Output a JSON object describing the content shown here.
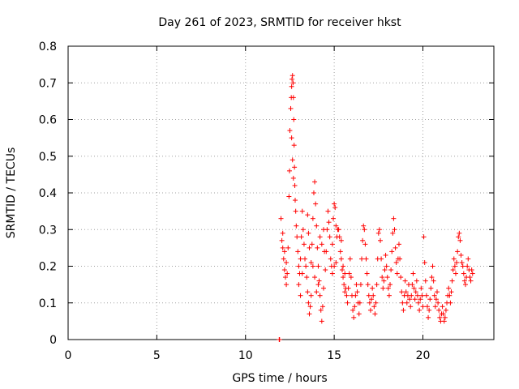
{
  "chart_data": {
    "type": "scatter",
    "title": "Day 261 of 2023, SRMTID for receiver hkst",
    "xlabel": "GPS time / hours",
    "ylabel": "SRMTID / TECUs",
    "xlim": [
      0,
      24
    ],
    "ylim": [
      0,
      0.8
    ],
    "xticks": [
      0,
      5,
      10,
      15,
      20
    ],
    "xtick_labels": [
      "0",
      "5",
      "10",
      "15",
      "20"
    ],
    "yticks": [
      0,
      0.1,
      0.2,
      0.3,
      0.4,
      0.5,
      0.6,
      0.7,
      0.8
    ],
    "ytick_labels": [
      "0",
      "0.1",
      "0.2",
      "0.3",
      "0.4",
      "0.5",
      "0.6",
      "0.7",
      "0.8"
    ],
    "grid": true,
    "marker": "+",
    "color": "#ff0000",
    "series": [
      {
        "name": "hkst",
        "points": [
          [
            11.9,
            0.0
          ],
          [
            11.92,
            0.0
          ],
          [
            12.0,
            0.33
          ],
          [
            12.05,
            0.27
          ],
          [
            12.1,
            0.25
          ],
          [
            12.15,
            0.22
          ],
          [
            12.2,
            0.19
          ],
          [
            12.25,
            0.17
          ],
          [
            12.3,
            0.15
          ],
          [
            12.1,
            0.29
          ],
          [
            12.2,
            0.24
          ],
          [
            12.3,
            0.21
          ],
          [
            12.35,
            0.18
          ],
          [
            12.4,
            0.25
          ],
          [
            12.45,
            0.39
          ],
          [
            12.48,
            0.46
          ],
          [
            12.5,
            0.57
          ],
          [
            12.55,
            0.63
          ],
          [
            12.58,
            0.66
          ],
          [
            12.6,
            0.69
          ],
          [
            12.62,
            0.71
          ],
          [
            12.65,
            0.72
          ],
          [
            12.68,
            0.7
          ],
          [
            12.7,
            0.66
          ],
          [
            12.72,
            0.6
          ],
          [
            12.74,
            0.53
          ],
          [
            12.76,
            0.47
          ],
          [
            12.78,
            0.42
          ],
          [
            12.8,
            0.38
          ],
          [
            12.83,
            0.35
          ],
          [
            12.86,
            0.31
          ],
          [
            12.9,
            0.28
          ],
          [
            12.6,
            0.55
          ],
          [
            12.65,
            0.49
          ],
          [
            12.7,
            0.44
          ],
          [
            12.95,
            0.24
          ],
          [
            13.0,
            0.2
          ],
          [
            13.05,
            0.18
          ],
          [
            13.1,
            0.22
          ],
          [
            13.15,
            0.28
          ],
          [
            13.2,
            0.35
          ],
          [
            13.25,
            0.3
          ],
          [
            13.3,
            0.26
          ],
          [
            13.35,
            0.22
          ],
          [
            13.4,
            0.2
          ],
          [
            13.0,
            0.15
          ],
          [
            13.1,
            0.12
          ],
          [
            13.2,
            0.18
          ],
          [
            13.45,
            0.17
          ],
          [
            13.5,
            0.13
          ],
          [
            13.55,
            0.1
          ],
          [
            13.6,
            0.07
          ],
          [
            13.65,
            0.09
          ],
          [
            13.7,
            0.12
          ],
          [
            13.5,
            0.34
          ],
          [
            13.55,
            0.29
          ],
          [
            13.6,
            0.25
          ],
          [
            13.7,
            0.21
          ],
          [
            13.75,
            0.26
          ],
          [
            13.8,
            0.33
          ],
          [
            13.85,
            0.4
          ],
          [
            13.9,
            0.43
          ],
          [
            13.95,
            0.37
          ],
          [
            14.0,
            0.31
          ],
          [
            14.05,
            0.25
          ],
          [
            13.8,
            0.2
          ],
          [
            13.9,
            0.17
          ],
          [
            14.0,
            0.13
          ],
          [
            14.1,
            0.15
          ],
          [
            14.1,
            0.2
          ],
          [
            14.15,
            0.16
          ],
          [
            14.2,
            0.12
          ],
          [
            14.25,
            0.08
          ],
          [
            14.3,
            0.05
          ],
          [
            14.35,
            0.09
          ],
          [
            14.4,
            0.14
          ],
          [
            14.2,
            0.28
          ],
          [
            14.3,
            0.26
          ],
          [
            14.4,
            0.3
          ],
          [
            14.45,
            0.24
          ],
          [
            14.5,
            0.19
          ],
          [
            14.55,
            0.24
          ],
          [
            14.6,
            0.3
          ],
          [
            14.65,
            0.35
          ],
          [
            14.7,
            0.32
          ],
          [
            14.75,
            0.28
          ],
          [
            14.8,
            0.22
          ],
          [
            14.85,
            0.2
          ],
          [
            14.9,
            0.26
          ],
          [
            14.95,
            0.33
          ],
          [
            15.0,
            0.37
          ],
          [
            15.05,
            0.36
          ],
          [
            15.1,
            0.31
          ],
          [
            15.15,
            0.28
          ],
          [
            15.2,
            0.3
          ],
          [
            14.9,
            0.18
          ],
          [
            15.0,
            0.2
          ],
          [
            15.1,
            0.21
          ],
          [
            15.25,
            0.3
          ],
          [
            15.3,
            0.28
          ],
          [
            15.35,
            0.24
          ],
          [
            15.4,
            0.22
          ],
          [
            15.45,
            0.19
          ],
          [
            15.5,
            0.17
          ],
          [
            15.55,
            0.15
          ],
          [
            15.6,
            0.13
          ],
          [
            15.4,
            0.27
          ],
          [
            15.5,
            0.2
          ],
          [
            15.6,
            0.18
          ],
          [
            15.65,
            0.14
          ],
          [
            15.7,
            0.12
          ],
          [
            15.75,
            0.1
          ],
          [
            15.8,
            0.14
          ],
          [
            15.85,
            0.18
          ],
          [
            15.9,
            0.22
          ],
          [
            15.95,
            0.17
          ],
          [
            16.0,
            0.12
          ],
          [
            16.05,
            0.08
          ],
          [
            16.1,
            0.06
          ],
          [
            16.15,
            0.09
          ],
          [
            16.2,
            0.12
          ],
          [
            16.25,
            0.15
          ],
          [
            16.3,
            0.13
          ],
          [
            16.35,
            0.1
          ],
          [
            16.4,
            0.07
          ],
          [
            16.45,
            0.1
          ],
          [
            16.5,
            0.15
          ],
          [
            16.55,
            0.22
          ],
          [
            16.6,
            0.27
          ],
          [
            16.65,
            0.31
          ],
          [
            16.7,
            0.3
          ],
          [
            16.75,
            0.26
          ],
          [
            16.8,
            0.22
          ],
          [
            16.85,
            0.18
          ],
          [
            16.9,
            0.15
          ],
          [
            16.95,
            0.12
          ],
          [
            17.0,
            0.1
          ],
          [
            17.05,
            0.08
          ],
          [
            17.1,
            0.11
          ],
          [
            17.15,
            0.14
          ],
          [
            17.2,
            0.12
          ],
          [
            17.25,
            0.09
          ],
          [
            17.3,
            0.07
          ],
          [
            17.35,
            0.1
          ],
          [
            17.4,
            0.15
          ],
          [
            17.45,
            0.22
          ],
          [
            17.5,
            0.29
          ],
          [
            17.55,
            0.3
          ],
          [
            17.6,
            0.27
          ],
          [
            17.65,
            0.22
          ],
          [
            17.7,
            0.17
          ],
          [
            17.75,
            0.14
          ],
          [
            17.8,
            0.16
          ],
          [
            17.85,
            0.19
          ],
          [
            17.9,
            0.23
          ],
          [
            17.95,
            0.2
          ],
          [
            18.0,
            0.17
          ],
          [
            18.05,
            0.14
          ],
          [
            18.1,
            0.12
          ],
          [
            18.15,
            0.15
          ],
          [
            18.2,
            0.19
          ],
          [
            18.25,
            0.24
          ],
          [
            18.3,
            0.29
          ],
          [
            18.35,
            0.33
          ],
          [
            18.4,
            0.3
          ],
          [
            18.45,
            0.25
          ],
          [
            18.5,
            0.21
          ],
          [
            18.55,
            0.18
          ],
          [
            18.6,
            0.22
          ],
          [
            18.65,
            0.26
          ],
          [
            18.7,
            0.22
          ],
          [
            18.75,
            0.17
          ],
          [
            18.8,
            0.13
          ],
          [
            18.85,
            0.1
          ],
          [
            18.9,
            0.08
          ],
          [
            18.95,
            0.12
          ],
          [
            19.0,
            0.16
          ],
          [
            19.05,
            0.13
          ],
          [
            19.1,
            0.1
          ],
          [
            19.15,
            0.12
          ],
          [
            19.2,
            0.15
          ],
          [
            19.25,
            0.11
          ],
          [
            19.3,
            0.09
          ],
          [
            19.35,
            0.12
          ],
          [
            19.4,
            0.15
          ],
          [
            19.45,
            0.18
          ],
          [
            19.5,
            0.14
          ],
          [
            19.55,
            0.11
          ],
          [
            19.6,
            0.13
          ],
          [
            19.65,
            0.16
          ],
          [
            19.7,
            0.12
          ],
          [
            19.75,
            0.1
          ],
          [
            19.8,
            0.08
          ],
          [
            19.85,
            0.11
          ],
          [
            19.9,
            0.14
          ],
          [
            19.95,
            0.12
          ],
          [
            20.0,
            0.09
          ],
          [
            20.05,
            0.28
          ],
          [
            20.1,
            0.21
          ],
          [
            20.15,
            0.16
          ],
          [
            20.2,
            0.12
          ],
          [
            20.25,
            0.09
          ],
          [
            20.3,
            0.06
          ],
          [
            20.35,
            0.08
          ],
          [
            20.4,
            0.11
          ],
          [
            20.45,
            0.14
          ],
          [
            20.5,
            0.17
          ],
          [
            20.55,
            0.2
          ],
          [
            20.6,
            0.16
          ],
          [
            20.65,
            0.12
          ],
          [
            20.7,
            0.09
          ],
          [
            20.75,
            0.11
          ],
          [
            20.8,
            0.13
          ],
          [
            20.85,
            0.1
          ],
          [
            20.9,
            0.08
          ],
          [
            20.95,
            0.06
          ],
          [
            21.0,
            0.05
          ],
          [
            21.05,
            0.07
          ],
          [
            21.1,
            0.09
          ],
          [
            21.15,
            0.07
          ],
          [
            21.2,
            0.05
          ],
          [
            21.25,
            0.06
          ],
          [
            21.3,
            0.08
          ],
          [
            21.35,
            0.1
          ],
          [
            21.4,
            0.12
          ],
          [
            21.45,
            0.14
          ],
          [
            21.5,
            0.12
          ],
          [
            21.55,
            0.1
          ],
          [
            21.6,
            0.13
          ],
          [
            21.65,
            0.16
          ],
          [
            21.7,
            0.19
          ],
          [
            21.75,
            0.22
          ],
          [
            21.8,
            0.2
          ],
          [
            21.85,
            0.18
          ],
          [
            21.9,
            0.21
          ],
          [
            21.95,
            0.24
          ],
          [
            22.0,
            0.28
          ],
          [
            22.05,
            0.29
          ],
          [
            22.1,
            0.27
          ],
          [
            22.15,
            0.23
          ],
          [
            22.2,
            0.21
          ],
          [
            22.25,
            0.2
          ],
          [
            22.3,
            0.18
          ],
          [
            22.35,
            0.16
          ],
          [
            22.4,
            0.15
          ],
          [
            22.45,
            0.17
          ],
          [
            22.5,
            0.2
          ],
          [
            22.55,
            0.22
          ],
          [
            22.6,
            0.19
          ],
          [
            22.65,
            0.17
          ],
          [
            22.7,
            0.16
          ],
          [
            22.75,
            0.19
          ],
          [
            22.8,
            0.18
          ]
        ]
      }
    ]
  }
}
